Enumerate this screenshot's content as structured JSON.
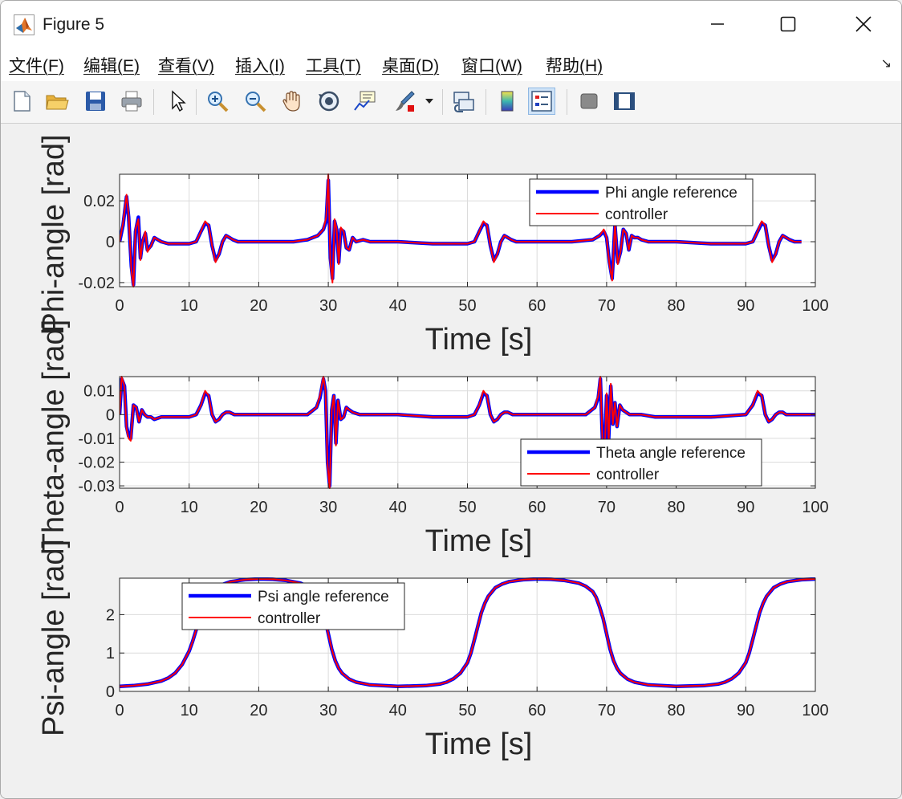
{
  "window": {
    "title": "Figure 5"
  },
  "menu": {
    "items": [
      "文件(F)",
      "编辑(E)",
      "查看(V)",
      "插入(I)",
      "工具(T)",
      "桌面(D)",
      "窗口(W)",
      "帮助(H)"
    ]
  },
  "toolbar": {
    "icons": [
      "new-figure-icon",
      "open-folder-icon",
      "save-icon",
      "print-icon",
      "pointer-icon",
      "zoom-in-icon",
      "zoom-out-icon",
      "pan-hand-icon",
      "rotate-3d-icon",
      "data-cursor-icon",
      "brush-icon",
      "link-plot-icon",
      "colorbar-icon",
      "legend-icon",
      "hide-plot-tools-icon",
      "show-plot-tools-icon"
    ]
  },
  "colors": {
    "reference": "#0000ff",
    "controller": "#ff0000",
    "axes_bg": "#ffffff",
    "grid": "#dcdcdc"
  },
  "chart_data": [
    {
      "type": "line",
      "ylabel": "Phi-angle [rad]",
      "xlabel": "Time [s]",
      "xlim": [
        0,
        100
      ],
      "ylim": [
        -0.022,
        0.033
      ],
      "xticks": [
        "0",
        "10",
        "20",
        "30",
        "40",
        "50",
        "60",
        "70",
        "80",
        "90",
        "100"
      ],
      "yticks": [
        {
          "v": 0.02,
          "label": "0.02"
        },
        {
          "v": 0,
          "label": "0"
        },
        {
          "v": -0.02,
          "label": "-0.02"
        }
      ],
      "grid": true,
      "legend_position": "top-right",
      "series": [
        {
          "name": "Phi angle reference",
          "color": "#0000ff"
        },
        {
          "name": "controller",
          "color": "#ff0000"
        }
      ],
      "x": [
        0,
        0.5,
        1,
        1.3,
        1.7,
        2,
        2.3,
        2.7,
        3,
        3.3,
        3.7,
        4,
        4.5,
        5,
        5.5,
        6,
        7,
        8,
        10,
        11,
        11.7,
        12.3,
        12.8,
        13.3,
        13.8,
        14.3,
        14.8,
        15.3,
        15.8,
        16.3,
        17,
        18,
        20,
        25,
        27,
        28.5,
        29.3,
        29.7,
        30,
        30.3,
        30.6,
        30.9,
        31.2,
        31.5,
        31.8,
        32.2,
        32.6,
        33,
        33.5,
        34,
        35,
        36,
        38,
        40,
        45,
        50,
        51,
        51.7,
        52.3,
        52.8,
        53.3,
        53.8,
        54.3,
        54.8,
        55.3,
        55.8,
        56.3,
        57,
        58,
        60,
        65,
        68,
        69,
        69.6,
        70,
        70.4,
        70.8,
        71.2,
        71.6,
        72,
        72.4,
        72.8,
        73.2,
        73.6,
        74,
        74.5,
        75,
        76,
        78,
        80,
        85,
        90,
        91,
        91.7,
        92.3,
        92.8,
        93.3,
        93.8,
        94.3,
        94.8,
        95.3,
        95.8,
        96.3,
        97,
        98,
        100
      ],
      "reference": [
        0,
        0.008,
        0.022,
        0.012,
        -0.012,
        -0.021,
        0.005,
        0.012,
        -0.008,
        0,
        0.004,
        -0.004,
        -0.002,
        0.002,
        0.001,
        0,
        -0.001,
        -0.001,
        -0.001,
        0,
        0.005,
        0.009,
        0.008,
        -0.002,
        -0.009,
        -0.006,
        0,
        0.003,
        0.002,
        0.001,
        0,
        0,
        0,
        0,
        0.001,
        0.003,
        0.006,
        0.01,
        0.03,
        -0.008,
        -0.018,
        0.01,
        0.006,
        -0.01,
        0.006,
        0.005,
        -0.003,
        -0.004,
        0.002,
        0,
        0.001,
        0,
        0,
        0,
        -0.001,
        -0.001,
        0,
        0.005,
        0.009,
        0.008,
        -0.002,
        -0.009,
        -0.006,
        0,
        0.003,
        0.002,
        0.001,
        0,
        0,
        0,
        0,
        0.001,
        0.003,
        0.005,
        0.002,
        -0.01,
        -0.018,
        0.008,
        -0.01,
        -0.005,
        0.006,
        0.004,
        -0.004,
        0.003,
        0.002,
        0.002,
        0.001,
        0,
        0,
        0,
        -0.001,
        -0.001,
        0,
        0.005,
        0.009,
        0.008,
        -0.002,
        -0.009,
        -0.006,
        0,
        0.003,
        0.002,
        0.001,
        0,
        0
      ],
      "controller": [
        0,
        0.009,
        0.023,
        0.013,
        -0.014,
        -0.022,
        0.006,
        0.011,
        -0.009,
        0,
        0.005,
        -0.005,
        -0.002,
        0.002,
        0.001,
        0,
        -0.001,
        -0.001,
        -0.001,
        0,
        0.005,
        0.01,
        0.008,
        -0.002,
        -0.01,
        -0.006,
        0,
        0.003,
        0.002,
        0.001,
        0,
        0,
        0,
        0,
        0.001,
        0.003,
        0.006,
        0.012,
        0.033,
        -0.01,
        -0.02,
        0.011,
        0.006,
        -0.011,
        0.007,
        0.005,
        -0.003,
        -0.004,
        0.002,
        0,
        0.001,
        0,
        0,
        0,
        -0.001,
        -0.001,
        0,
        0.005,
        0.01,
        0.008,
        -0.002,
        -0.01,
        -0.006,
        0,
        0.003,
        0.002,
        0.001,
        0,
        0,
        0,
        0,
        0.001,
        0.003,
        0.006,
        0.002,
        -0.011,
        -0.019,
        0.009,
        -0.011,
        -0.005,
        0.006,
        0.004,
        -0.004,
        0.003,
        0.002,
        0.002,
        0.001,
        0,
        0,
        0,
        -0.001,
        -0.001,
        0,
        0.005,
        0.01,
        0.008,
        -0.002,
        -0.01,
        -0.006,
        0,
        0.003,
        0.002,
        0.001,
        0,
        0
      ]
    },
    {
      "type": "line",
      "ylabel": "Theta-angle [rad]",
      "xlabel": "Time [s]",
      "xlim": [
        0,
        100
      ],
      "ylim": [
        -0.031,
        0.016
      ],
      "xticks": [
        "0",
        "10",
        "20",
        "30",
        "40",
        "50",
        "60",
        "70",
        "80",
        "90",
        "100"
      ],
      "yticks": [
        {
          "v": 0.01,
          "label": "0.01"
        },
        {
          "v": 0,
          "label": "0"
        },
        {
          "v": -0.01,
          "label": "-0.01"
        },
        {
          "v": -0.02,
          "label": "-0.02"
        },
        {
          "v": -0.03,
          "label": "-0.03"
        }
      ],
      "grid": true,
      "legend_position": "bottom-right",
      "series": [
        {
          "name": "Theta angle reference",
          "color": "#0000ff"
        },
        {
          "name": "controller",
          "color": "#ff0000"
        }
      ],
      "x": [
        0,
        0.3,
        0.7,
        1,
        1.3,
        1.6,
        2,
        2.4,
        2.8,
        3.2,
        3.6,
        4,
        4.5,
        5,
        6,
        7,
        8,
        10,
        11,
        11.7,
        12.3,
        12.8,
        13.3,
        13.8,
        14.3,
        14.8,
        15.3,
        15.8,
        16.5,
        18,
        20,
        25,
        27,
        28.3,
        28.8,
        29.3,
        29.6,
        29.9,
        30.2,
        30.5,
        30.8,
        31.1,
        31.4,
        31.8,
        32.2,
        32.6,
        33,
        33.5,
        34.5,
        36,
        40,
        45,
        50,
        51,
        51.7,
        52.3,
        52.8,
        53.3,
        53.8,
        54.3,
        54.8,
        55.3,
        55.8,
        56.5,
        58,
        60,
        65,
        67,
        68.3,
        68.8,
        69.1,
        69.4,
        69.7,
        70,
        70.3,
        70.6,
        70.9,
        71.2,
        71.5,
        71.9,
        72.3,
        72.8,
        73.3,
        74,
        75,
        77,
        80,
        85,
        90,
        91,
        91.7,
        92.3,
        92.8,
        93.3,
        93.8,
        94.3,
        94.8,
        95.3,
        95.8,
        96.5,
        98,
        100
      ],
      "reference": [
        0,
        0.015,
        0.012,
        -0.005,
        -0.009,
        -0.01,
        0.004,
        0.003,
        -0.003,
        0.002,
        0,
        -0.001,
        -0.001,
        -0.002,
        -0.001,
        -0.001,
        -0.001,
        -0.001,
        0,
        0.004,
        0.009,
        0.008,
        0,
        -0.003,
        -0.002,
        0,
        0.001,
        0.001,
        0,
        0,
        0,
        0,
        0,
        0.003,
        0.007,
        0.015,
        0.01,
        -0.02,
        -0.03,
        0.002,
        0.008,
        -0.012,
        0.006,
        -0.002,
        -0.001,
        0.003,
        0.002,
        0.001,
        0,
        0,
        0,
        -0.001,
        -0.001,
        0,
        0.004,
        0.009,
        0.008,
        0,
        -0.003,
        -0.002,
        0,
        0.001,
        0.001,
        0,
        0,
        0,
        0,
        0,
        0.003,
        0.007,
        0.015,
        -0.01,
        -0.018,
        0.008,
        -0.01,
        0.012,
        -0.004,
        0.005,
        -0.005,
        0.004,
        0.002,
        0.001,
        0,
        0,
        0,
        -0.001,
        -0.001,
        -0.001,
        0,
        0.004,
        0.009,
        0.008,
        0,
        -0.003,
        -0.002,
        0,
        0.001,
        0.001,
        0,
        0,
        0,
        0
      ],
      "controller": [
        0,
        0.016,
        0.012,
        -0.006,
        -0.01,
        -0.011,
        0.004,
        0.003,
        -0.003,
        0.002,
        0,
        -0.001,
        -0.001,
        -0.002,
        -0.001,
        -0.001,
        -0.001,
        -0.001,
        0,
        0.004,
        0.01,
        0.008,
        0,
        -0.003,
        -0.002,
        0,
        0.001,
        0.001,
        0,
        0,
        0,
        0,
        0,
        0.003,
        0.008,
        0.016,
        0.01,
        -0.021,
        -0.031,
        0.002,
        0.008,
        -0.013,
        0.006,
        -0.002,
        -0.001,
        0.003,
        0.002,
        0.001,
        0,
        0,
        0,
        -0.001,
        -0.001,
        0,
        0.004,
        0.01,
        0.008,
        0,
        -0.003,
        -0.002,
        0,
        0.001,
        0.001,
        0,
        0,
        0,
        0,
        0,
        0.003,
        0.008,
        0.016,
        -0.011,
        -0.019,
        0.009,
        -0.011,
        0.013,
        -0.004,
        0.005,
        -0.005,
        0.004,
        0.002,
        0.001,
        0,
        0,
        0,
        -0.001,
        -0.001,
        -0.001,
        0,
        0.004,
        0.01,
        0.008,
        0,
        -0.003,
        -0.002,
        0,
        0.001,
        0.001,
        0,
        0,
        0,
        0
      ]
    },
    {
      "type": "line",
      "ylabel": "Psi-angle [rad]",
      "xlabel": "Time [s]",
      "xlim": [
        0,
        100
      ],
      "ylim": [
        0,
        2.95
      ],
      "xticks": [
        "0",
        "10",
        "20",
        "30",
        "40",
        "50",
        "60",
        "70",
        "80",
        "90",
        "100"
      ],
      "yticks": [
        {
          "v": 2,
          "label": "2"
        },
        {
          "v": 1,
          "label": "1"
        },
        {
          "v": 0,
          "label": "0"
        }
      ],
      "grid": true,
      "legend_position": "top-left",
      "series": [
        {
          "name": "Psi angle reference",
          "color": "#0000ff"
        },
        {
          "name": "controller",
          "color": "#ff0000"
        }
      ],
      "x": [
        0,
        2,
        4,
        6,
        7,
        8,
        9,
        10,
        10.5,
        11,
        11.5,
        12,
        12.5,
        13,
        14,
        15,
        16,
        18,
        20,
        22,
        24,
        26,
        27,
        28,
        28.5,
        29,
        29.5,
        30,
        30.5,
        31,
        31.5,
        32,
        33,
        34,
        36,
        40,
        44,
        46,
        47,
        48,
        49,
        50,
        50.5,
        51,
        51.5,
        52,
        52.5,
        53,
        54,
        55,
        56,
        58,
        60,
        62,
        64,
        66,
        67,
        68,
        68.5,
        69,
        69.5,
        70,
        70.5,
        71,
        71.5,
        72,
        73,
        74,
        76,
        80,
        84,
        86,
        87,
        88,
        89,
        90,
        90.5,
        91,
        91.5,
        92,
        92.5,
        93,
        94,
        95,
        96,
        98,
        100
      ],
      "reference": [
        0.13,
        0.15,
        0.19,
        0.27,
        0.35,
        0.48,
        0.7,
        1.05,
        1.3,
        1.6,
        1.9,
        2.15,
        2.35,
        2.5,
        2.7,
        2.8,
        2.86,
        2.91,
        2.93,
        2.92,
        2.89,
        2.82,
        2.74,
        2.6,
        2.45,
        2.2,
        1.9,
        1.5,
        1.1,
        0.8,
        0.6,
        0.47,
        0.32,
        0.24,
        0.17,
        0.13,
        0.15,
        0.19,
        0.24,
        0.33,
        0.48,
        0.75,
        1.0,
        1.35,
        1.7,
        2.05,
        2.3,
        2.48,
        2.7,
        2.8,
        2.86,
        2.91,
        2.93,
        2.92,
        2.89,
        2.82,
        2.74,
        2.6,
        2.45,
        2.2,
        1.9,
        1.5,
        1.1,
        0.8,
        0.6,
        0.47,
        0.32,
        0.24,
        0.17,
        0.13,
        0.15,
        0.19,
        0.24,
        0.33,
        0.48,
        0.75,
        1.0,
        1.35,
        1.7,
        2.05,
        2.3,
        2.48,
        2.7,
        2.8,
        2.86,
        2.91,
        2.93
      ],
      "controller": [
        0.13,
        0.15,
        0.19,
        0.27,
        0.35,
        0.48,
        0.7,
        1.05,
        1.3,
        1.6,
        1.9,
        2.15,
        2.35,
        2.5,
        2.7,
        2.8,
        2.86,
        2.91,
        2.93,
        2.92,
        2.89,
        2.82,
        2.74,
        2.6,
        2.45,
        2.2,
        1.9,
        1.5,
        1.1,
        0.8,
        0.6,
        0.47,
        0.32,
        0.24,
        0.17,
        0.13,
        0.15,
        0.19,
        0.24,
        0.33,
        0.48,
        0.75,
        1.0,
        1.35,
        1.7,
        2.05,
        2.3,
        2.48,
        2.7,
        2.8,
        2.86,
        2.91,
        2.93,
        2.92,
        2.89,
        2.82,
        2.74,
        2.6,
        2.45,
        2.2,
        1.9,
        1.5,
        1.1,
        0.8,
        0.6,
        0.47,
        0.32,
        0.24,
        0.17,
        0.13,
        0.15,
        0.19,
        0.24,
        0.33,
        0.48,
        0.75,
        1.0,
        1.35,
        1.7,
        2.05,
        2.3,
        2.48,
        2.7,
        2.8,
        2.86,
        2.91,
        2.93
      ]
    }
  ]
}
